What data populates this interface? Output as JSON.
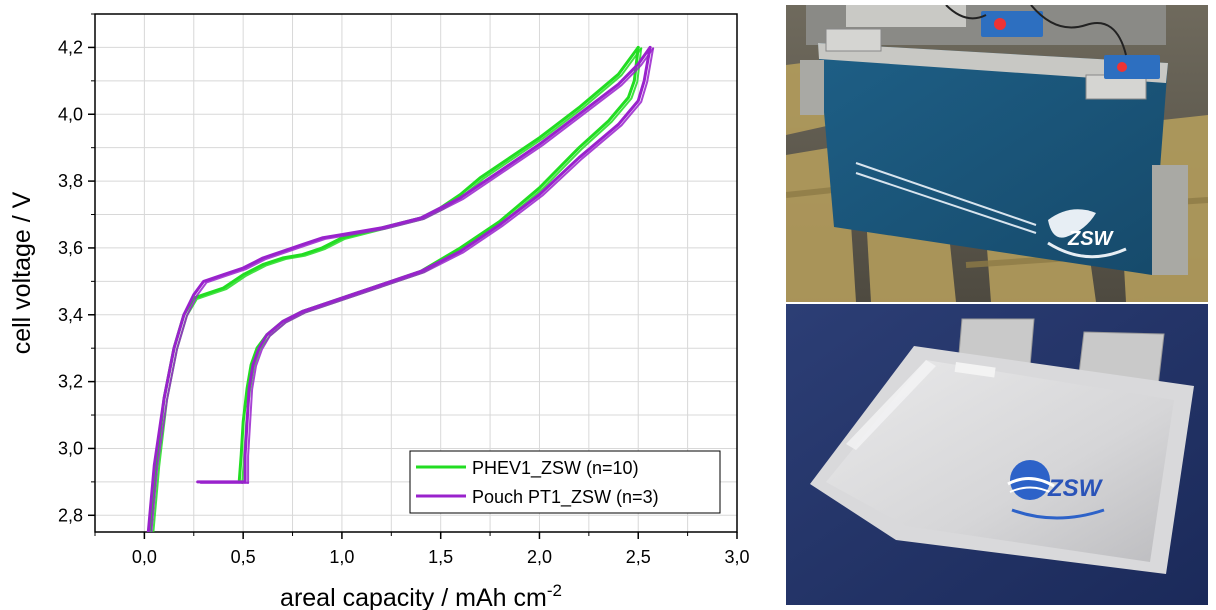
{
  "chart_data": {
    "type": "line",
    "xlabel": "areal capacity / mAh cm",
    "xlabel_sup": "-2",
    "ylabel": "cell voltage / V",
    "xlim": [
      -0.25,
      3.0
    ],
    "ylim": [
      2.75,
      4.3
    ],
    "xticks": [
      0.0,
      0.5,
      1.0,
      1.5,
      2.0,
      2.5,
      3.0
    ],
    "xtick_labels": [
      "0,0",
      "0,5",
      "1,0",
      "1,5",
      "2,0",
      "2,5",
      "3,0"
    ],
    "yticks": [
      2.8,
      3.0,
      3.2,
      3.4,
      3.6,
      3.8,
      4.0,
      4.2
    ],
    "ytick_labels": [
      "2,8",
      "3,0",
      "3,2",
      "3,4",
      "3,6",
      "3,8",
      "4,0",
      "4,2"
    ],
    "grid": true,
    "legend_position": "bottom-right",
    "series": [
      {
        "name": "PHEV1_ZSW (n=10)",
        "color": "#22dd22",
        "charge": {
          "x": [
            0.03,
            0.06,
            0.1,
            0.15,
            0.2,
            0.25,
            0.3,
            0.4,
            0.5,
            0.6,
            0.7,
            0.8,
            0.85,
            0.9,
            1.0,
            1.2,
            1.4,
            1.5,
            1.6,
            1.7,
            1.8,
            2.0,
            2.2,
            2.4,
            2.5
          ],
          "y": [
            2.75,
            2.95,
            3.15,
            3.3,
            3.4,
            3.45,
            3.46,
            3.48,
            3.52,
            3.55,
            3.57,
            3.58,
            3.59,
            3.6,
            3.63,
            3.66,
            3.69,
            3.72,
            3.76,
            3.81,
            3.85,
            3.93,
            4.02,
            4.12,
            4.2
          ]
        },
        "discharge": {
          "x": [
            2.5,
            2.48,
            2.45,
            2.35,
            2.2,
            2.0,
            1.8,
            1.6,
            1.4,
            1.2,
            1.0,
            0.8,
            0.7,
            0.62,
            0.57,
            0.54,
            0.52,
            0.5,
            0.49,
            0.48
          ],
          "y": [
            4.2,
            4.1,
            4.05,
            3.98,
            3.9,
            3.78,
            3.68,
            3.6,
            3.53,
            3.49,
            3.45,
            3.41,
            3.38,
            3.34,
            3.3,
            3.25,
            3.18,
            3.08,
            2.98,
            2.9
          ]
        },
        "tail": {
          "x": [
            0.48,
            0.48
          ],
          "y": [
            2.9,
            2.9
          ]
        }
      },
      {
        "name": "Pouch PT1_ZSW (n=3)",
        "color": "#9922cc",
        "charge": {
          "x": [
            0.02,
            0.05,
            0.1,
            0.15,
            0.2,
            0.25,
            0.3,
            0.4,
            0.5,
            0.6,
            0.7,
            0.8,
            0.9,
            1.0,
            1.2,
            1.4,
            1.5,
            1.6,
            1.7,
            1.8,
            2.0,
            2.2,
            2.4,
            2.5,
            2.56
          ],
          "y": [
            2.75,
            2.95,
            3.15,
            3.3,
            3.4,
            3.46,
            3.5,
            3.52,
            3.54,
            3.57,
            3.59,
            3.61,
            3.63,
            3.64,
            3.66,
            3.69,
            3.72,
            3.75,
            3.79,
            3.83,
            3.91,
            4.0,
            4.09,
            4.15,
            4.2
          ]
        },
        "discharge": {
          "x": [
            2.56,
            2.53,
            2.5,
            2.4,
            2.2,
            2.0,
            1.8,
            1.6,
            1.4,
            1.2,
            1.0,
            0.8,
            0.7,
            0.62,
            0.58,
            0.55,
            0.53,
            0.52,
            0.51,
            0.51
          ],
          "y": [
            4.2,
            4.1,
            4.04,
            3.97,
            3.87,
            3.76,
            3.67,
            3.59,
            3.53,
            3.49,
            3.45,
            3.41,
            3.38,
            3.34,
            3.3,
            3.25,
            3.18,
            3.08,
            2.98,
            2.9
          ]
        },
        "tail": {
          "x": [
            0.27,
            0.51
          ],
          "y": [
            2.9,
            2.9
          ]
        }
      }
    ]
  },
  "photos": {
    "top": {
      "logo_text": "ZSW"
    },
    "bottom": {
      "logo_text": "ZSW"
    }
  }
}
